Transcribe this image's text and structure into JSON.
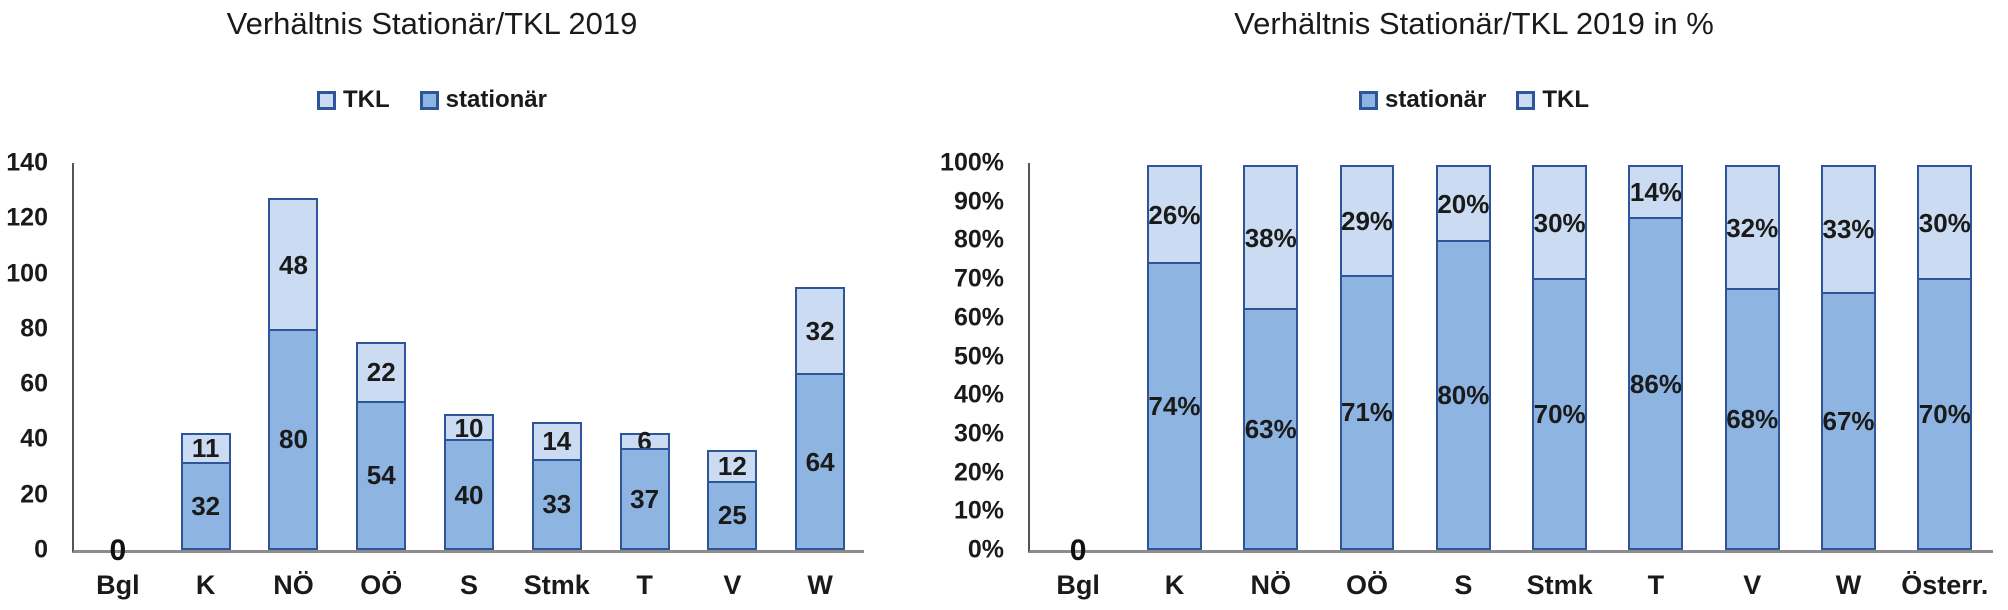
{
  "colors": {
    "stationaer_fill": "#8EB4E2",
    "tkl_fill": "#CBDCF2",
    "bar_border": "#2E5597",
    "axis_line": "#555555",
    "baseline": "#8C8C8C"
  },
  "chart_data": [
    {
      "type": "bar",
      "stacked": true,
      "title": "Verhältnis Stationär/TKL 2019",
      "legend": [
        {
          "key": "tkl",
          "label": "TKL"
        },
        {
          "key": "stationaer",
          "label": "stationär"
        }
      ],
      "legend_position": "top",
      "grid": false,
      "ylim": [
        0,
        140
      ],
      "ytick_labels": [
        "140",
        "120",
        "100",
        "80",
        "60",
        "40",
        "20",
        "0"
      ],
      "categories": [
        "Bgl",
        "K",
        "NÖ",
        "OÖ",
        "S",
        "Stmk",
        "T",
        "V",
        "W"
      ],
      "series": [
        {
          "key": "stationaer",
          "name": "stationär",
          "values": [
            0,
            32,
            80,
            54,
            40,
            33,
            37,
            25,
            64
          ],
          "labels": [
            "",
            "32",
            "80",
            "54",
            "40",
            "33",
            "37",
            "25",
            "64"
          ]
        },
        {
          "key": "tkl",
          "name": "TKL",
          "values": [
            0,
            11,
            48,
            22,
            10,
            14,
            6,
            12,
            32
          ],
          "labels": [
            "",
            "11",
            "48",
            "22",
            "10",
            "14",
            "6",
            "12",
            "32"
          ]
        }
      ],
      "zero_label": "0"
    },
    {
      "type": "bar",
      "stacked": true,
      "percent": true,
      "title": "Verhältnis Stationär/TKL 2019 in %",
      "legend": [
        {
          "key": "stationaer",
          "label": "stationär"
        },
        {
          "key": "tkl",
          "label": "TKL"
        }
      ],
      "legend_position": "top",
      "grid": false,
      "ylim": [
        0,
        100
      ],
      "ytick_labels": [
        "100%",
        "90%",
        "80%",
        "70%",
        "60%",
        "50%",
        "40%",
        "30%",
        "20%",
        "10%",
        "0%"
      ],
      "categories": [
        "Bgl",
        "K",
        "NÖ",
        "OÖ",
        "S",
        "Stmk",
        "T",
        "V",
        "W",
        "Österr."
      ],
      "series": [
        {
          "key": "stationaer",
          "name": "stationär",
          "values": [
            0,
            74.4,
            62.5,
            71.1,
            80,
            70.2,
            86,
            67.6,
            66.7,
            70.2
          ],
          "labels": [
            "",
            "74%",
            "63%",
            "71%",
            "80%",
            "70%",
            "86%",
            "68%",
            "67%",
            "70%"
          ]
        },
        {
          "key": "tkl",
          "name": "TKL",
          "values": [
            0,
            25.6,
            37.5,
            28.9,
            20,
            29.8,
            14,
            32.4,
            33.3,
            29.8
          ],
          "labels": [
            "",
            "26%",
            "38%",
            "29%",
            "20%",
            "30%",
            "14%",
            "32%",
            "33%",
            "30%"
          ]
        }
      ],
      "zero_label": "0"
    }
  ]
}
